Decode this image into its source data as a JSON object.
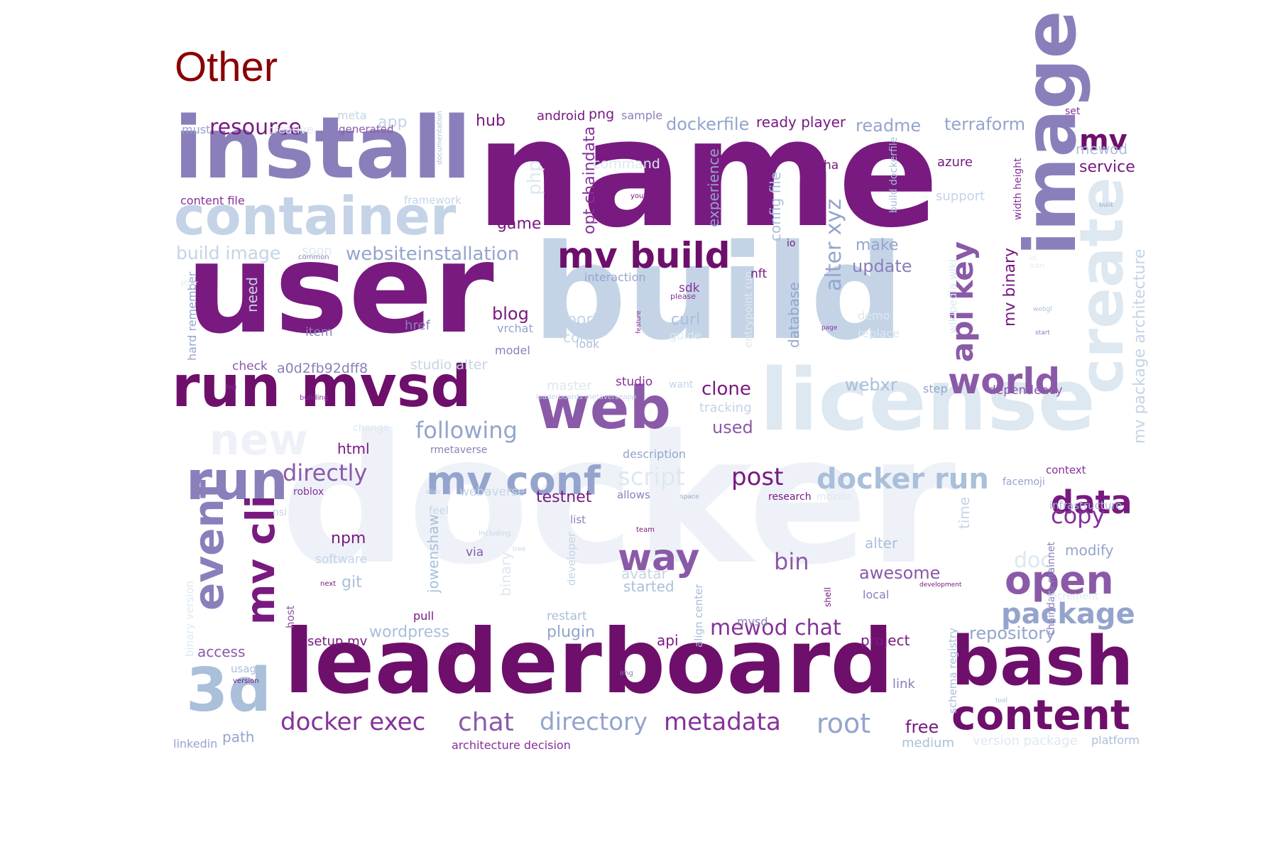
{
  "title": "Other",
  "palette": {
    "title": "#8b0000",
    "shades": [
      "#eef2f8",
      "#dde8f1",
      "#c4d4e6",
      "#a9bfda",
      "#94a4cd",
      "#8a7fba",
      "#8a5aa8",
      "#85329a",
      "#781a80",
      "#6e0f6b",
      "#5c0a5c"
    ]
  },
  "words": [
    {
      "text": "name",
      "c": 8
    },
    {
      "text": "docker",
      "c": 0
    },
    {
      "text": "user",
      "c": 8
    },
    {
      "text": "build",
      "c": 2
    },
    {
      "text": "install",
      "c": 5
    },
    {
      "text": "leaderboard",
      "c": 9
    },
    {
      "text": "license",
      "c": 1
    },
    {
      "text": "container",
      "c": 2
    },
    {
      "text": "image",
      "c": 5
    },
    {
      "text": "run mvsd",
      "c": 9
    },
    {
      "text": "bash",
      "c": 9
    },
    {
      "text": "web",
      "c": 6
    },
    {
      "text": "create",
      "c": 1
    },
    {
      "text": "run",
      "c": 5
    },
    {
      "text": "3d",
      "c": 3
    },
    {
      "text": "mv build",
      "c": 9
    },
    {
      "text": "new",
      "c": 0
    },
    {
      "text": "mv conf",
      "c": 4
    },
    {
      "text": "content",
      "c": 9
    },
    {
      "text": "event",
      "c": 5
    },
    {
      "text": "mv cli",
      "c": 8
    },
    {
      "text": "open",
      "c": 6
    },
    {
      "text": "way",
      "c": 6
    },
    {
      "text": "world",
      "c": 6
    },
    {
      "text": "api key",
      "c": 6
    },
    {
      "text": "data",
      "c": 8
    },
    {
      "text": "docker run",
      "c": 3
    },
    {
      "text": "package",
      "c": 4
    },
    {
      "text": "mv",
      "c": 9
    },
    {
      "text": "directory",
      "c": 4
    },
    {
      "text": "metadata",
      "c": 7
    },
    {
      "text": "docker exec",
      "c": 7
    },
    {
      "text": "root",
      "c": 4
    },
    {
      "text": "chat",
      "c": 6
    },
    {
      "text": "mewod chat",
      "c": 7
    },
    {
      "text": "post",
      "c": 8
    },
    {
      "text": "following",
      "c": 4
    },
    {
      "text": "directly",
      "c": 6
    },
    {
      "text": "alter xyz",
      "c": 4
    },
    {
      "text": "copy",
      "c": 7
    },
    {
      "text": "resource",
      "c": 8
    },
    {
      "text": "websiteinstallation",
      "c": 4
    },
    {
      "text": "build image",
      "c": 2
    },
    {
      "text": "bin",
      "c": 6
    },
    {
      "text": "script",
      "c": 1
    },
    {
      "text": "awesome",
      "c": 6
    },
    {
      "text": "clone",
      "c": 8
    },
    {
      "text": "mv package architecture",
      "c": 2
    },
    {
      "text": "opt chaindata",
      "c": 7
    },
    {
      "text": "update",
      "c": 5
    },
    {
      "text": "make",
      "c": 4
    },
    {
      "text": "terraform",
      "c": 4
    },
    {
      "text": "readme",
      "c": 4
    },
    {
      "text": "dockerfile",
      "c": 4
    },
    {
      "text": "repository",
      "c": 4
    },
    {
      "text": "free",
      "c": 8
    },
    {
      "text": "mv binary",
      "c": 8
    },
    {
      "text": "used",
      "c": 6
    },
    {
      "text": "blog",
      "c": 8
    },
    {
      "text": "webxr",
      "c": 3
    },
    {
      "text": "hub",
      "c": 8
    },
    {
      "text": "app",
      "c": 2
    },
    {
      "text": "game",
      "c": 8
    },
    {
      "text": "service",
      "c": 8
    },
    {
      "text": "ready player",
      "c": 8
    },
    {
      "text": "plugin",
      "c": 4
    },
    {
      "text": "wordpress",
      "c": 3
    },
    {
      "text": "jowenshaw",
      "c": 3
    },
    {
      "text": "mewod",
      "c": 3
    },
    {
      "text": "port",
      "c": 2
    },
    {
      "text": "core",
      "c": 2
    },
    {
      "text": "curl",
      "c": 3
    },
    {
      "text": "database",
      "c": 4
    },
    {
      "text": "experience",
      "c": 4
    },
    {
      "text": "config file",
      "c": 3
    },
    {
      "text": "html",
      "c": 8
    },
    {
      "text": "npm",
      "c": 8
    },
    {
      "text": "testnet",
      "c": 8
    },
    {
      "text": "studio alter",
      "c": 2
    },
    {
      "text": "a0d2fb92dff8",
      "c": 5
    },
    {
      "text": "link",
      "c": 5
    },
    {
      "text": "git",
      "c": 3
    },
    {
      "text": "azure",
      "c": 8
    },
    {
      "text": "project",
      "c": 8
    },
    {
      "text": "access",
      "c": 6
    },
    {
      "text": "path",
      "c": 4
    },
    {
      "text": "linkedin",
      "c": 4
    },
    {
      "text": "alter",
      "c": 3
    },
    {
      "text": "command",
      "c": 1
    },
    {
      "text": "android",
      "c": 8
    },
    {
      "text": "png",
      "c": 8
    },
    {
      "text": "sample",
      "c": 5
    },
    {
      "text": "support",
      "c": 2
    },
    {
      "text": "webaverse",
      "c": 2
    },
    {
      "text": "modify",
      "c": 4
    },
    {
      "text": "api",
      "c": 8
    },
    {
      "text": "started",
      "c": 3
    },
    {
      "text": "avatar",
      "c": 2
    },
    {
      "text": "setup mv",
      "c": 8
    },
    {
      "text": "medium",
      "c": 3
    },
    {
      "text": "version package",
      "c": 1
    },
    {
      "text": "platform",
      "c": 3
    },
    {
      "text": "tracking",
      "c": 2
    },
    {
      "text": "php",
      "c": 1
    },
    {
      "text": "dependency",
      "c": 6
    },
    {
      "text": "hard remember",
      "c": 4
    },
    {
      "text": "context",
      "c": 7
    },
    {
      "text": "infrastructure",
      "c": 3
    },
    {
      "text": "time",
      "c": 2
    },
    {
      "text": "host",
      "c": 6
    },
    {
      "text": "pull",
      "c": 8
    },
    {
      "text": "restart",
      "c": 3
    },
    {
      "text": "must",
      "c": 4
    },
    {
      "text": "meta",
      "c": 2
    },
    {
      "text": "generated",
      "c": 6
    },
    {
      "text": "content file",
      "c": 7
    },
    {
      "text": "creative",
      "c": 1
    },
    {
      "text": "framework",
      "c": 2
    },
    {
      "text": "documentation",
      "c": 3
    },
    {
      "text": "soon",
      "c": 1
    },
    {
      "text": "common",
      "c": 5
    },
    {
      "text": "need",
      "c": 2
    },
    {
      "text": "item",
      "c": 5
    },
    {
      "text": "check",
      "c": 6
    },
    {
      "text": "href",
      "c": 5
    },
    {
      "text": "vrchat",
      "c": 4
    },
    {
      "text": "model",
      "c": 5
    },
    {
      "text": "look",
      "c": 3
    },
    {
      "text": "interaction",
      "c": 4
    },
    {
      "text": "please",
      "c": 7
    },
    {
      "text": "sdk",
      "c": 7
    },
    {
      "text": "guide",
      "c": 1
    },
    {
      "text": "feature",
      "c": 7
    },
    {
      "text": "entrypoint run",
      "c": 1
    },
    {
      "text": "nft",
      "c": 8
    },
    {
      "text": "io",
      "c": 8
    },
    {
      "text": "wikipedia wiki",
      "c": 1
    },
    {
      "text": "demo",
      "c": 1
    },
    {
      "text": "replace",
      "c": 1
    },
    {
      "text": "step",
      "c": 4
    },
    {
      "text": "page",
      "c": 7
    },
    {
      "text": "webgl",
      "c": 3
    },
    {
      "text": "start",
      "c": 5
    },
    {
      "text": "built",
      "c": 4
    },
    {
      "text": "list",
      "c": 5
    },
    {
      "text": "width height",
      "c": 7
    },
    {
      "text": "build dockerfile",
      "c": 3
    },
    {
      "text": "ha",
      "c": 8
    },
    {
      "text": "youtube",
      "c": 8
    },
    {
      "text": "set",
      "c": 7
    },
    {
      "text": "studio",
      "c": 7
    },
    {
      "text": "master",
      "c": 1
    },
    {
      "text": "want",
      "c": 2
    },
    {
      "text": "leaderboards metaverseapp",
      "c": 2
    },
    {
      "text": "rmetaverse",
      "c": 5
    },
    {
      "text": "description",
      "c": 4
    },
    {
      "text": "log",
      "c": 7
    },
    {
      "text": "building",
      "c": 7
    },
    {
      "text": "change",
      "c": 1
    },
    {
      "text": "roblox",
      "c": 7
    },
    {
      "text": "alias",
      "c": 2
    },
    {
      "text": "allows",
      "c": 5
    },
    {
      "text": "space",
      "c": 4
    },
    {
      "text": "research",
      "c": 8
    },
    {
      "text": "mozilla",
      "c": 1
    },
    {
      "text": "facemoji",
      "c": 4
    },
    {
      "text": "nsi",
      "c": 2
    },
    {
      "text": "feel",
      "c": 2
    },
    {
      "text": "including",
      "c": 2
    },
    {
      "text": "team",
      "c": 8
    },
    {
      "text": "tree",
      "c": 2
    },
    {
      "text": "software",
      "c": 2
    },
    {
      "text": "via",
      "c": 6
    },
    {
      "text": "binary",
      "c": 1
    },
    {
      "text": "developer",
      "c": 2
    },
    {
      "text": "next",
      "c": 8
    },
    {
      "text": "align center",
      "c": 3
    },
    {
      "text": "mvsd",
      "c": 5
    },
    {
      "text": "shell",
      "c": 8
    },
    {
      "text": "local",
      "c": 5
    },
    {
      "text": "development",
      "c": 8
    },
    {
      "text": "add",
      "c": 8
    },
    {
      "text": "usage",
      "c": 3
    },
    {
      "text": "version",
      "c": 8
    },
    {
      "text": "img",
      "c": 5
    },
    {
      "text": "schema registry",
      "c": 3
    },
    {
      "text": "tool",
      "c": 3
    },
    {
      "text": "binary version",
      "c": 1
    },
    {
      "text": "doc",
      "c": 1
    },
    {
      "text": "chaindata mainnet",
      "c": 5
    },
    {
      "text": "increment",
      "c": 1
    },
    {
      "text": "architecture decision",
      "c": 7
    },
    {
      "text": "icon",
      "c": 1
    },
    {
      "text": "jitter",
      "c": 1
    },
    {
      "text": "lct",
      "c": 1
    }
  ]
}
